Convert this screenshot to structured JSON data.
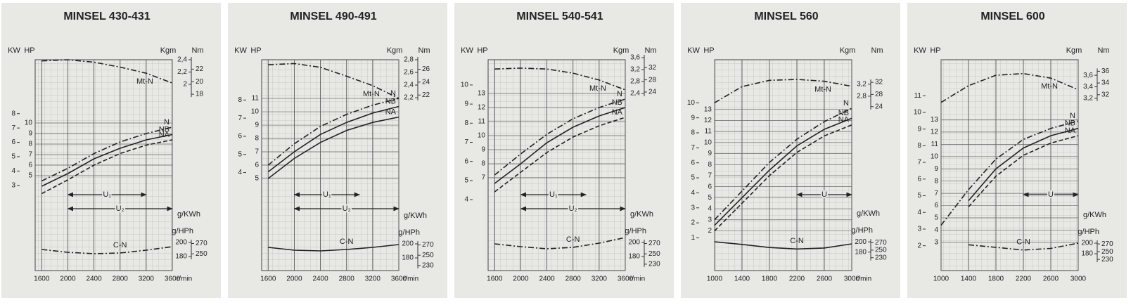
{
  "chart_data": [
    {
      "type": "line",
      "title": "MINSEL 430-431",
      "x": [
        1600,
        2000,
        2400,
        2800,
        3200,
        3600
      ],
      "xlim": [
        1500,
        3600
      ],
      "xticks": [
        1600,
        2000,
        2400,
        2800,
        3200,
        3600
      ],
      "x_label": "r/min",
      "ylim": [
        -4,
        16
      ],
      "yticks": [
        5,
        6,
        7,
        8,
        9,
        10
      ],
      "y_label": "HP",
      "kw": {
        "label": "KW",
        "lim": [
          -2.94,
          11.76
        ],
        "ticks": [
          3,
          4,
          5,
          6,
          7,
          8
        ]
      },
      "y2lim": [
        -1.03,
        2.4
      ],
      "y2ticks": [
        2,
        {
          "value": 2.2,
          "label": "2,2"
        },
        {
          "value": 2.4,
          "label": "2,4"
        }
      ],
      "y2_label": "Kgm",
      "nm": {
        "label": "Nm",
        "lim": [
          -10.1,
          23.5
        ],
        "ticks": [
          18,
          20,
          22
        ]
      },
      "y3lim": [
        160,
        460
      ],
      "y3ticks": [
        180,
        200
      ],
      "y3_label": "g/HPh",
      "gkwh": {
        "label": "g/KWh",
        "lim": [
          217.6,
          625.6
        ],
        "ticks": [
          250,
          270
        ]
      },
      "series": [
        {
          "name": "Mt-N",
          "axis": "y2",
          "style": "dashdot",
          "color": "#222",
          "values": [
            2.38,
            2.4,
            2.36,
            2.28,
            2.18,
            2.02
          ]
        },
        {
          "name": "N",
          "axis": "y",
          "style": "dashdot",
          "color": "#222",
          "values": [
            4.5,
            5.7,
            7.1,
            8.2,
            9.0,
            9.6
          ]
        },
        {
          "name": "NB",
          "axis": "y",
          "style": "solid",
          "color": "#222",
          "values": [
            4.0,
            5.2,
            6.6,
            7.6,
            8.4,
            8.9
          ]
        },
        {
          "name": "NA",
          "axis": "y",
          "style": "dashed",
          "color": "#222",
          "values": [
            3.3,
            4.6,
            6.0,
            7.1,
            7.9,
            8.4
          ]
        },
        {
          "name": "C-N",
          "axis": "y3",
          "style": "dashdot",
          "color": "#222",
          "values": [
            190,
            186,
            184,
            185,
            189,
            194
          ]
        }
      ],
      "ranges": [
        {
          "label": "U₁",
          "from": 2000,
          "to": 3200
        },
        {
          "label": "U₂",
          "from": 2000,
          "to": 3600
        }
      ]
    },
    {
      "type": "line",
      "title": "MINSEL 490-491",
      "x": [
        1600,
        2000,
        2400,
        2800,
        3200,
        3600
      ],
      "xlim": [
        1500,
        3600
      ],
      "xticks": [
        1600,
        2000,
        2400,
        2800,
        3200,
        3600
      ],
      "x_label": "r/min",
      "ylim": [
        -1.9,
        13.9
      ],
      "yticks": [
        5,
        6,
        7,
        8,
        9,
        10,
        11
      ],
      "y_label": "HP",
      "kw": {
        "label": "KW",
        "lim": [
          -1.4,
          10.22
        ],
        "ticks": [
          4,
          5,
          6,
          7,
          8
        ]
      },
      "y2lim": [
        -0.53,
        2.8
      ],
      "y2ticks": [
        {
          "value": 2.2,
          "label": "2,2"
        },
        {
          "value": 2.4,
          "label": "2,4"
        },
        {
          "value": 2.6,
          "label": "2,6"
        },
        {
          "value": 2.8,
          "label": "2,8"
        }
      ],
      "y2_label": "Kgm",
      "nm": {
        "label": "Nm",
        "lim": [
          -5.2,
          27.47
        ],
        "ticks": [
          22,
          24,
          26
        ]
      },
      "y3lim": [
        162,
        462
      ],
      "y3ticks": [
        180,
        200
      ],
      "y3_label": "g/HPh",
      "gkwh": {
        "label": "g/KWh",
        "lim": [
          220.3,
          628.3
        ],
        "ticks": [
          230,
          250,
          270
        ]
      },
      "series": [
        {
          "name": "Mt-N",
          "axis": "y2",
          "style": "dashdot",
          "color": "#222",
          "values": [
            2.72,
            2.74,
            2.68,
            2.54,
            2.39,
            2.19
          ]
        },
        {
          "name": "N",
          "axis": "y",
          "style": "dashdot",
          "color": "#222",
          "values": [
            6.0,
            7.6,
            8.9,
            9.8,
            10.5,
            11.0
          ]
        },
        {
          "name": "NB",
          "axis": "y",
          "style": "solid",
          "color": "#222",
          "values": [
            5.5,
            7.0,
            8.3,
            9.2,
            9.9,
            10.4
          ]
        },
        {
          "name": "NA",
          "axis": "y",
          "style": "solid",
          "color": "#222",
          "values": [
            5.0,
            6.5,
            7.7,
            8.6,
            9.2,
            9.6
          ]
        },
        {
          "name": "C-N",
          "axis": "y3",
          "style": "solid",
          "color": "#222",
          "values": [
            195,
            191,
            190,
            192,
            195,
            199
          ]
        }
      ],
      "ranges": [
        {
          "label": "U₁",
          "from": 2000,
          "to": 3000
        },
        {
          "label": "U₂",
          "from": 2000,
          "to": 3600
        }
      ]
    },
    {
      "type": "line",
      "title": "MINSEL 540-541",
      "x": [
        1600,
        2000,
        2400,
        2800,
        3200,
        3600
      ],
      "xlim": [
        1500,
        3600
      ],
      "xticks": [
        1600,
        2000,
        2400,
        2800,
        3200,
        3600
      ],
      "x_label": "r/min",
      "ylim": [
        0.4,
        15.4
      ],
      "yticks": [
        7,
        8,
        9,
        10,
        11,
        12,
        13
      ],
      "y_label": "HP",
      "kw": {
        "label": "KW",
        "lim": [
          0.29,
          11.32
        ],
        "ticks": [
          4,
          5,
          6,
          7,
          8,
          9,
          10
        ]
      },
      "y2lim": [
        -3.53,
        3.53
      ],
      "y2ticks": [
        {
          "value": 2.4,
          "label": "2,4"
        },
        {
          "value": 2.8,
          "label": "2,8"
        },
        {
          "value": 3.2,
          "label": "3,2"
        },
        {
          "value": 3.6,
          "label": "3,6"
        }
      ],
      "y2_label": "Kgm",
      "nm": {
        "label": "Nm",
        "lim": [
          -34.6,
          34.6
        ],
        "ticks": [
          24,
          28,
          32
        ]
      },
      "y3lim": [
        160,
        460
      ],
      "y3ticks": [
        180,
        200
      ],
      "y3_label": "g/HPh",
      "gkwh": {
        "label": "g/KWh",
        "lim": [
          217.6,
          625.6
        ],
        "ticks": [
          230,
          250,
          270
        ]
      },
      "series": [
        {
          "name": "Mt-N",
          "axis": "y2",
          "style": "dashdot",
          "color": "#222",
          "values": [
            3.22,
            3.25,
            3.22,
            3.08,
            2.85,
            2.52
          ]
        },
        {
          "name": "N",
          "axis": "y",
          "style": "dashdot",
          "color": "#222",
          "values": [
            7.2,
            8.7,
            10.1,
            11.2,
            12.0,
            12.6
          ]
        },
        {
          "name": "NB",
          "axis": "y",
          "style": "solid",
          "color": "#222",
          "values": [
            6.6,
            8.0,
            9.5,
            10.6,
            11.4,
            12.0
          ]
        },
        {
          "name": "NA",
          "axis": "y",
          "style": "dashed",
          "color": "#222",
          "values": [
            6.0,
            7.4,
            8.8,
            9.9,
            10.7,
            11.3
          ]
        },
        {
          "name": "C-N",
          "axis": "y3",
          "style": "dashdot",
          "color": "#222",
          "values": [
            198,
            194,
            191,
            193,
            199,
            207
          ]
        }
      ],
      "ranges": [
        {
          "label": "U₁",
          "from": 2000,
          "to": 3000
        },
        {
          "label": "U₂",
          "from": 2000,
          "to": 3600
        }
      ]
    },
    {
      "type": "line",
      "title": "MINSEL 560",
      "x": [
        1000,
        1400,
        1800,
        2200,
        2600,
        3000
      ],
      "xlim": [
        1000,
        3000
      ],
      "xticks": [
        1000,
        1400,
        1800,
        2200,
        2600,
        3000
      ],
      "x_label": "r/min",
      "ylim": [
        -1.6,
        17.5
      ],
      "yticks": [
        2,
        3,
        4,
        5,
        6,
        7,
        8,
        9,
        10,
        11,
        12,
        13
      ],
      "y_label": "HP",
      "kw": {
        "label": "KW",
        "lim": [
          -1.18,
          12.87
        ],
        "ticks": [
          1,
          2,
          3,
          4,
          5,
          6,
          7,
          8,
          9,
          10
        ]
      },
      "y2lim": [
        -3.04,
        4.02
      ],
      "y2ticks": [
        {
          "value": 2.8,
          "label": "2,8"
        },
        {
          "value": 3.2,
          "label": "3,2"
        }
      ],
      "y2_label": "Kgm",
      "nm": {
        "label": "Nm",
        "lim": [
          -29.8,
          39.4
        ],
        "ticks": [
          24,
          28,
          32
        ]
      },
      "y3lim": [
        144,
        555
      ],
      "y3ticks": [
        180,
        200
      ],
      "y3_label": "g/HPh",
      "gkwh": {
        "label": "g/KWh",
        "lim": [
          195.8,
          754.8
        ],
        "ticks": [
          230,
          250,
          270
        ]
      },
      "series": [
        {
          "name": "Mt-N",
          "axis": "y2",
          "style": "dashdot",
          "color": "#222",
          "values": [
            2.58,
            3.12,
            3.33,
            3.36,
            3.3,
            3.13
          ]
        },
        {
          "name": "N",
          "axis": "y",
          "style": "dashdot",
          "color": "#222",
          "values": [
            3.0,
            5.6,
            8.2,
            10.3,
            11.9,
            13.1
          ]
        },
        {
          "name": "NB",
          "axis": "y",
          "style": "solid",
          "color": "#222",
          "values": [
            2.5,
            5.0,
            7.5,
            9.7,
            11.2,
            12.2
          ]
        },
        {
          "name": "NA",
          "axis": "y",
          "style": "dashed",
          "color": "#222",
          "values": [
            2.0,
            4.5,
            7.0,
            9.1,
            10.6,
            11.6
          ]
        },
        {
          "name": "C-N",
          "axis": "y3",
          "style": "solid",
          "color": "#222",
          "values": [
            200,
            195,
            189,
            186,
            188,
            196
          ]
        }
      ],
      "ranges": [
        {
          "label": "U",
          "from": 2200,
          "to": 3000
        }
      ]
    },
    {
      "type": "line",
      "title": "MINSEL 600",
      "x": [
        1000,
        1400,
        1800,
        2200,
        2600,
        3000
      ],
      "xlim": [
        1000,
        3000
      ],
      "xticks": [
        1000,
        1400,
        1800,
        2200,
        2600,
        3000
      ],
      "ylim": [
        0.7,
        17.9
      ],
      "yticks": [
        3,
        4,
        5,
        6,
        7,
        8,
        9,
        10,
        11,
        12,
        13
      ],
      "y_label": "HP",
      "kw": {
        "label": "KW",
        "lim": [
          0.51,
          13.16
        ],
        "ticks": [
          2,
          3,
          4,
          5,
          6,
          7,
          8,
          9,
          10,
          11
        ]
      },
      "y2lim": [
        0.21,
        3.87
      ],
      "y2ticks": [
        {
          "value": 3.2,
          "label": "3,2"
        },
        {
          "value": 3.4,
          "label": "3,4"
        },
        {
          "value": 3.6,
          "label": "3,6"
        }
      ],
      "y2_label": "Kgm",
      "nm": {
        "label": "Nm",
        "lim": [
          2.06,
          37.96
        ],
        "ticks": [
          32,
          34,
          36
        ]
      },
      "y3lim": [
        148,
        548
      ],
      "y3ticks": [
        180,
        200
      ],
      "y3_label": "g/HPh",
      "gkwh": {
        "label": "g/KWh",
        "lim": [
          201.3,
          745.3
        ],
        "ticks": [
          230,
          250,
          270
        ]
      },
      "series": [
        {
          "name": "Mt-N",
          "axis": "y2",
          "style": "dashdot",
          "color": "#222",
          "values": [
            3.13,
            3.42,
            3.6,
            3.63,
            3.55,
            3.35
          ]
        },
        {
          "name": "N",
          "axis": "y",
          "style": "dashdot",
          "color": "#222",
          "values": [
            4.4,
            7.3,
            9.8,
            11.4,
            12.3,
            12.9
          ]
        },
        {
          "name": "NB",
          "axis": "y",
          "style": "solid",
          "color": "#222",
          "values": [
            null,
            6.4,
            9.0,
            10.7,
            11.7,
            12.3
          ]
        },
        {
          "name": "NA",
          "axis": "y",
          "style": "dashed",
          "color": "#222",
          "values": [
            null,
            5.9,
            8.4,
            10.1,
            11.1,
            11.7
          ]
        },
        {
          "name": "C-N",
          "axis": "y3",
          "style": "dashdot",
          "color": "#222",
          "values": [
            null,
            197,
            192,
            187,
            190,
            200
          ]
        }
      ],
      "ranges": [
        {
          "label": "U",
          "from": 2200,
          "to": 3000
        }
      ]
    }
  ]
}
